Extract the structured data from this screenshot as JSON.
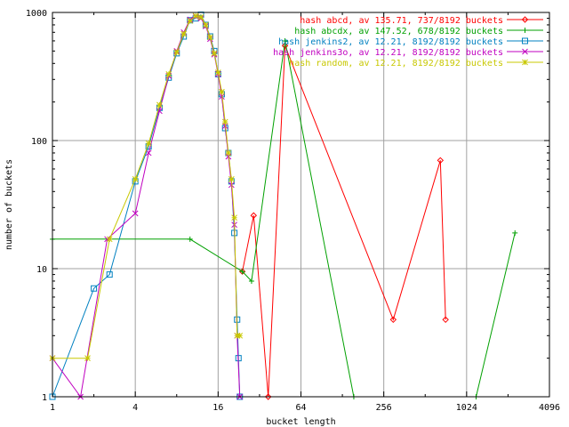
{
  "chart_data": {
    "type": "line",
    "title": "",
    "xlabel": "bucket length",
    "ylabel": "number of buckets",
    "x_scale": "log2",
    "y_scale": "log10",
    "xlim": [
      1,
      4096
    ],
    "ylim": [
      1,
      1000
    ],
    "x_ticks": [
      {
        "value": 1,
        "label": "1"
      },
      {
        "value": 4,
        "label": "4"
      },
      {
        "value": 16,
        "label": "16"
      },
      {
        "value": 64,
        "label": "64"
      },
      {
        "value": 256,
        "label": "256"
      },
      {
        "value": 1024,
        "label": "1024"
      },
      {
        "value": 4096,
        "label": "4096"
      }
    ],
    "y_ticks": [
      {
        "value": 1,
        "label": "1"
      },
      {
        "value": 10,
        "label": "10"
      },
      {
        "value": 100,
        "label": "100"
      },
      {
        "value": 1000,
        "label": "1000"
      }
    ],
    "grid": true,
    "legend_position": "top-right",
    "series": [
      {
        "name": "hash abcd, av 135.71, 737/8192 buckets",
        "color": "#ff0000",
        "marker": "diamond",
        "points": [
          [
            24,
            9.5
          ],
          [
            29,
            26
          ],
          [
            37,
            1
          ],
          [
            49,
            550
          ],
          [
            300,
            4
          ],
          [
            660,
            70
          ],
          [
            720,
            4
          ]
        ]
      },
      {
        "name": "hash abcdx, av 147.52, 678/8192 buckets",
        "color": "#00a000",
        "marker": "plus",
        "points": [
          [
            1,
            17
          ],
          [
            10,
            17
          ],
          [
            24,
            9.5
          ],
          [
            28,
            8
          ],
          [
            49,
            600
          ],
          [
            155,
            1
          ],
          [
            1200,
            1
          ],
          [
            2300,
            19
          ]
        ]
      },
      {
        "name": "hash jenkins2, av 12.21, 8192/8192 buckets",
        "color": "#0080c0",
        "marker": "square",
        "points": [
          [
            1,
            1
          ],
          [
            2,
            7
          ],
          [
            2.6,
            9
          ],
          [
            4,
            48
          ],
          [
            5,
            90
          ],
          [
            6,
            180
          ],
          [
            7,
            310
          ],
          [
            8,
            480
          ],
          [
            9,
            650
          ],
          [
            10,
            870
          ],
          [
            11,
            900
          ],
          [
            12,
            960
          ],
          [
            13,
            800
          ],
          [
            14,
            650
          ],
          [
            15,
            500
          ],
          [
            16,
            330
          ],
          [
            17,
            230
          ],
          [
            18,
            125
          ],
          [
            19,
            80
          ],
          [
            20,
            48
          ],
          [
            21,
            19
          ],
          [
            22,
            4
          ],
          [
            22.5,
            2
          ],
          [
            23,
            1
          ]
        ]
      },
      {
        "name": "hash jenkins3o, av 12.21, 8192/8192 buckets",
        "color": "#c000c0",
        "marker": "cross",
        "points": [
          [
            1,
            2
          ],
          [
            1.6,
            1
          ],
          [
            2.5,
            17
          ],
          [
            4,
            27
          ],
          [
            5,
            80
          ],
          [
            6,
            170
          ],
          [
            7,
            320
          ],
          [
            8,
            500
          ],
          [
            9,
            700
          ],
          [
            10,
            880
          ],
          [
            11,
            930
          ],
          [
            12,
            900
          ],
          [
            13,
            780
          ],
          [
            14,
            620
          ],
          [
            15,
            470
          ],
          [
            16,
            330
          ],
          [
            17,
            220
          ],
          [
            18,
            130
          ],
          [
            19,
            75
          ],
          [
            20,
            45
          ],
          [
            21,
            22
          ],
          [
            22,
            3
          ],
          [
            23,
            1
          ]
        ]
      },
      {
        "name": "hash random, av 12.21, 8192/8192 buckets",
        "color": "#c8c800",
        "marker": "star",
        "points": [
          [
            1,
            2
          ],
          [
            1.8,
            2
          ],
          [
            2.6,
            17
          ],
          [
            4,
            50
          ],
          [
            5,
            95
          ],
          [
            6,
            190
          ],
          [
            7,
            330
          ],
          [
            8,
            490
          ],
          [
            9,
            680
          ],
          [
            10,
            860
          ],
          [
            11,
            940
          ],
          [
            12,
            920
          ],
          [
            13,
            800
          ],
          [
            14,
            640
          ],
          [
            15,
            480
          ],
          [
            16,
            340
          ],
          [
            17,
            240
          ],
          [
            18,
            140
          ],
          [
            19,
            80
          ],
          [
            20,
            50
          ],
          [
            21,
            25
          ],
          [
            22,
            3
          ],
          [
            23,
            3
          ]
        ]
      }
    ]
  }
}
